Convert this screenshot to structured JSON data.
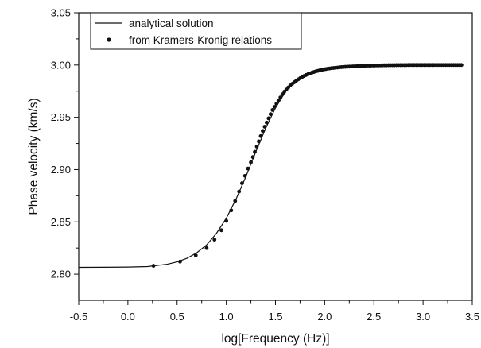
{
  "chart_data": {
    "type": "line",
    "xlabel": "log[Frequency (Hz)]",
    "ylabel": "Phase velocity (km/s)",
    "xlim": [
      -0.5,
      3.5
    ],
    "ylim": [
      2.775,
      3.05
    ],
    "x_ticks": [
      -0.5,
      0.0,
      0.5,
      1.0,
      1.5,
      2.0,
      2.5,
      3.0,
      3.5
    ],
    "x_tick_labels": [
      "-0.5",
      "0.0",
      "0.5",
      "1.0",
      "1.5",
      "2.0",
      "2.5",
      "3.0",
      "3.5"
    ],
    "y_ticks": [
      2.8,
      2.85,
      2.9,
      2.95,
      3.0,
      3.05
    ],
    "y_tick_labels": [
      "2.80",
      "2.85",
      "2.90",
      "2.95",
      "3.00",
      "3.05"
    ],
    "legend_placement": "top-left",
    "grid": false,
    "series": [
      {
        "name": "analytical solution",
        "style": "line",
        "color": "#111111",
        "x": [
          -0.5,
          -0.25,
          0.0,
          0.2,
          0.4,
          0.5,
          0.6,
          0.7,
          0.8,
          0.9,
          1.0,
          1.1,
          1.2,
          1.3,
          1.4,
          1.5,
          1.6,
          1.7,
          1.8,
          1.9,
          2.0,
          2.1,
          2.2,
          2.3,
          2.5,
          2.7,
          3.0,
          3.2,
          3.4
        ],
        "y": [
          2.8065,
          2.8066,
          2.8068,
          2.8073,
          2.8095,
          2.8118,
          2.8152,
          2.8205,
          2.828,
          2.839,
          2.8535,
          2.872,
          2.8935,
          2.917,
          2.9395,
          2.959,
          2.9743,
          2.9848,
          2.9912,
          2.995,
          2.997,
          2.9982,
          2.999,
          2.9995,
          2.9998,
          2.9999,
          3.0,
          3.0,
          3.0
        ]
      },
      {
        "name": "from Kramers-Kronig relations",
        "style": "points",
        "color": "#111111",
        "x": [
          0.26,
          0.53,
          0.69,
          0.8,
          0.88,
          0.95,
          1.0,
          1.05,
          1.09,
          1.13,
          1.16,
          1.19,
          1.22,
          1.25,
          1.27,
          1.29,
          1.31,
          1.33,
          1.35,
          1.37,
          1.39,
          1.41,
          1.43,
          1.45,
          1.47,
          1.49,
          1.51,
          1.53,
          1.55,
          1.57,
          1.59,
          1.61,
          1.63,
          1.65,
          1.67,
          1.69,
          1.71,
          1.73,
          1.75,
          1.77,
          1.79,
          1.81,
          1.83,
          1.85,
          1.87,
          1.89,
          1.91,
          1.93,
          1.95,
          1.97,
          1.99,
          2.01,
          2.03,
          2.05,
          2.07,
          2.09,
          2.11,
          2.13,
          2.15,
          2.17,
          2.19,
          2.21,
          2.23,
          2.25,
          2.27,
          2.29,
          2.31,
          2.33,
          2.35,
          2.37,
          2.39,
          2.41,
          2.43,
          2.45,
          2.47,
          2.49,
          2.51,
          2.53,
          2.55,
          2.57,
          2.59,
          2.61,
          2.63,
          2.65,
          2.67,
          2.69,
          2.71,
          2.73,
          2.75,
          2.77,
          2.79,
          2.81,
          2.83,
          2.85,
          2.87,
          2.89,
          2.91,
          2.93,
          2.95,
          2.97,
          2.99,
          3.01,
          3.03,
          3.05,
          3.07,
          3.09,
          3.11,
          3.13,
          3.15,
          3.17,
          3.19,
          3.21,
          3.23,
          3.25,
          3.27,
          3.29,
          3.31,
          3.33,
          3.35,
          3.37,
          3.39
        ],
        "y": [
          2.808,
          2.812,
          2.818,
          2.825,
          2.833,
          2.842,
          2.851,
          2.861,
          2.87,
          2.879,
          2.887,
          2.894,
          2.901,
          2.907,
          2.912,
          2.917,
          2.922,
          2.927,
          2.932,
          2.937,
          2.941,
          2.945,
          2.949,
          2.953,
          2.957,
          2.96,
          2.963,
          2.966,
          2.969,
          2.972,
          2.9745,
          2.9765,
          2.9785,
          2.9805,
          2.982,
          2.9835,
          2.9848,
          2.9862,
          2.9874,
          2.9885,
          2.9895,
          2.9904,
          2.9912,
          2.992,
          2.9927,
          2.9933,
          2.9939,
          2.9944,
          2.9949,
          2.9953,
          2.9957,
          2.9961,
          2.9964,
          2.9967,
          2.997,
          2.9972,
          2.9974,
          2.9976,
          2.9978,
          2.998,
          2.9981,
          2.9983,
          2.9984,
          2.9985,
          2.9986,
          2.9987,
          2.9988,
          2.9989,
          2.999,
          2.9991,
          2.9992,
          2.9992,
          2.9993,
          2.9994,
          2.9994,
          2.9995,
          2.9995,
          2.9996,
          2.9996,
          2.9996,
          2.9997,
          2.9997,
          2.9997,
          2.9998,
          2.9998,
          2.9998,
          2.9998,
          2.9999,
          2.9999,
          2.9999,
          2.9999,
          2.9999,
          2.9999,
          3.0,
          3.0,
          3.0,
          3.0,
          3.0,
          3.0,
          3.0,
          3.0,
          3.0,
          3.0,
          3.0,
          3.0,
          3.0,
          3.0,
          3.0,
          3.0,
          3.0,
          3.0,
          3.0,
          3.0,
          3.0,
          3.0,
          3.0,
          3.0,
          3.0,
          3.0,
          3.0,
          3.0
        ]
      }
    ]
  }
}
